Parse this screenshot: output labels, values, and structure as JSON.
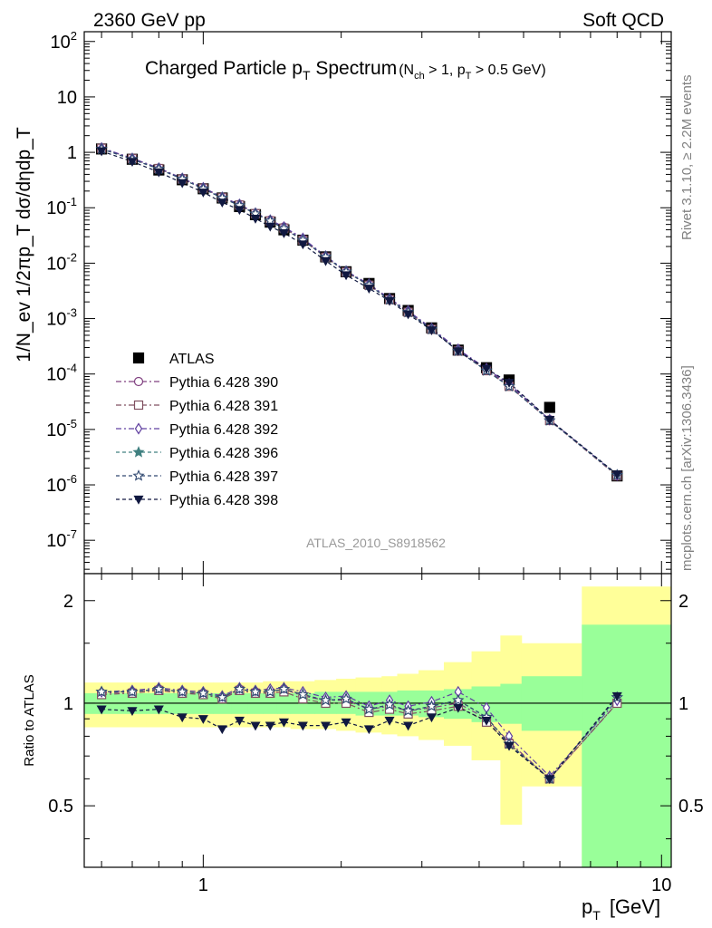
{
  "header": {
    "left": "2360 GeV pp",
    "right": "Soft QCD"
  },
  "side_labels": {
    "rivet": "Rivet 3.1.10, ≥ 2.2M events",
    "mcplots": "mcplots.cern.ch [arXiv:1306.3436]"
  },
  "analysis_tag": "ATLAS_2010_S8918562",
  "main_panel": {
    "title": "Charged Particle p",
    "title_sub": "T",
    "title_rest": " Spectrum",
    "title_cond": "(N",
    "title_cond_sub": "ch",
    "title_cond_mid": " > 1, p",
    "title_cond_sub2": "T",
    "title_cond_end": " > 0.5 GeV)",
    "ylabel": "1/N_ev 1/2πp_T dσ/dηdp_T"
  },
  "ratio_panel": {
    "ylabel": "Ratio to ATLAS",
    "yticks": [
      "0.5",
      "1",
      "2"
    ]
  },
  "xaxis": {
    "label": "p",
    "label_sub": "T",
    "label_unit": "[GeV]",
    "ticks": [
      "1",
      "10"
    ]
  },
  "legend": [
    {
      "label": "ATLAS"
    },
    {
      "label": "Pythia 6.428 390"
    },
    {
      "label": "Pythia 6.428 391"
    },
    {
      "label": "Pythia 6.428 392"
    },
    {
      "label": "Pythia 6.428 396"
    },
    {
      "label": "Pythia 6.428 397"
    },
    {
      "label": "Pythia 6.428 398"
    }
  ],
  "chart_data": [
    {
      "type": "scatter",
      "panel": "spectrum",
      "xscale": "log",
      "yscale": "log",
      "xlim": [
        0.55,
        10.5
      ],
      "ylim": [
        2.5e-08,
        150
      ],
      "yticks": [
        "10^-7",
        "10^-6",
        "10^-5",
        "10^-4",
        "10^-3",
        "10^-2",
        "10^-1",
        "1",
        "10",
        "10^2"
      ],
      "x": [
        0.6,
        0.7,
        0.8,
        0.9,
        1.0,
        1.1,
        1.2,
        1.3,
        1.4,
        1.5,
        1.65,
        1.85,
        2.05,
        2.3,
        2.55,
        2.8,
        3.15,
        3.6,
        4.15,
        4.65,
        5.7,
        8.0
      ],
      "series": [
        {
          "name": "ATLAS",
          "color": "#000000",
          "marker": "square-filled",
          "values": [
            1.15,
            0.75,
            0.48,
            0.32,
            0.22,
            0.15,
            0.105,
            0.075,
            0.055,
            0.04,
            0.026,
            0.013,
            0.007,
            0.0043,
            0.0023,
            0.0014,
            0.00068,
            0.00027,
            0.00013,
            7.8e-05,
            2.5e-05,
            1.45e-06
          ]
        },
        {
          "name": "Pythia 6.428 390",
          "color": "#804080",
          "marker": "circle-open",
          "dash": "6,3,2,3",
          "values": [
            1.2,
            0.78,
            0.52,
            0.34,
            0.23,
            0.155,
            0.115,
            0.08,
            0.06,
            0.045,
            0.027,
            0.013,
            0.007,
            0.0041,
            0.0022,
            0.00135,
            0.00065,
            0.00027,
            0.00012,
            6.4e-05,
            1.5e-05,
            1.5e-06
          ]
        },
        {
          "name": "Pythia 6.428 391",
          "color": "#805060",
          "marker": "square-open",
          "dash": "6,3,2,3",
          "values": [
            1.18,
            0.77,
            0.51,
            0.33,
            0.225,
            0.152,
            0.112,
            0.078,
            0.058,
            0.043,
            0.026,
            0.0128,
            0.0069,
            0.004,
            0.0022,
            0.0013,
            0.00064,
            0.00026,
            0.000115,
            6e-05,
            1.45e-05,
            1.45e-06
          ]
        },
        {
          "name": "Pythia 6.428 392",
          "color": "#6040a0",
          "marker": "diamond-open",
          "dash": "6,3,2,3",
          "values": [
            1.2,
            0.78,
            0.52,
            0.34,
            0.23,
            0.155,
            0.115,
            0.08,
            0.06,
            0.045,
            0.028,
            0.0134,
            0.0072,
            0.0042,
            0.0023,
            0.00138,
            0.00067,
            0.00028,
            0.000125,
            6.6e-05,
            1.5e-05,
            1.5e-06
          ]
        },
        {
          "name": "Pythia 6.428 396",
          "color": "#408080",
          "marker": "star-filled",
          "dash": "4,3",
          "values": [
            1.15,
            0.75,
            0.5,
            0.33,
            0.22,
            0.15,
            0.11,
            0.078,
            0.058,
            0.042,
            0.026,
            0.013,
            0.007,
            0.004,
            0.0022,
            0.0013,
            0.00064,
            0.00026,
            0.000115,
            6e-05,
            1.45e-05,
            1.5e-06
          ]
        },
        {
          "name": "Pythia 6.428 397",
          "color": "#304870",
          "marker": "star-open",
          "dash": "4,3",
          "values": [
            1.15,
            0.75,
            0.5,
            0.33,
            0.22,
            0.15,
            0.11,
            0.078,
            0.058,
            0.042,
            0.026,
            0.013,
            0.007,
            0.004,
            0.0022,
            0.0013,
            0.00064,
            0.00026,
            0.000115,
            6e-05,
            1.45e-05,
            1.5e-06
          ]
        },
        {
          "name": "Pythia 6.428 398",
          "color": "#101840",
          "marker": "triangle-down-filled",
          "dash": "4,3",
          "values": [
            1.05,
            0.68,
            0.44,
            0.28,
            0.19,
            0.125,
            0.092,
            0.064,
            0.046,
            0.035,
            0.022,
            0.011,
            0.0061,
            0.0035,
            0.0021,
            0.0012,
            0.00062,
            0.00026,
            0.000125,
            7e-05,
            1.5e-05,
            1.55e-06
          ]
        }
      ]
    },
    {
      "type": "line",
      "panel": "ratio",
      "xscale": "log",
      "yscale": "log",
      "xlim": [
        0.55,
        10.5
      ],
      "ylim": [
        0.33,
        2.4
      ],
      "bins": [
        [
          0.55,
          0.65
        ],
        [
          0.65,
          0.75
        ],
        [
          0.75,
          0.85
        ],
        [
          0.85,
          0.95
        ],
        [
          0.95,
          1.05
        ],
        [
          1.05,
          1.15
        ],
        [
          1.15,
          1.25
        ],
        [
          1.25,
          1.35
        ],
        [
          1.35,
          1.45
        ],
        [
          1.45,
          1.55
        ],
        [
          1.55,
          1.75
        ],
        [
          1.75,
          1.95
        ],
        [
          1.95,
          2.15
        ],
        [
          2.15,
          2.45
        ],
        [
          2.45,
          2.65
        ],
        [
          2.65,
          2.95
        ],
        [
          2.95,
          3.35
        ],
        [
          3.35,
          3.85
        ],
        [
          3.85,
          4.45
        ],
        [
          4.45,
          4.95
        ],
        [
          4.95,
          6.7
        ],
        [
          6.7,
          10.5
        ]
      ],
      "band_stat": [
        [
          0.93,
          1.07
        ],
        [
          0.93,
          1.07
        ],
        [
          0.93,
          1.07
        ],
        [
          0.93,
          1.07
        ],
        [
          0.93,
          1.07
        ],
        [
          0.93,
          1.07
        ],
        [
          0.93,
          1.07
        ],
        [
          0.93,
          1.07
        ],
        [
          0.93,
          1.07
        ],
        [
          0.93,
          1.07
        ],
        [
          0.93,
          1.07
        ],
        [
          0.93,
          1.08
        ],
        [
          0.93,
          1.08
        ],
        [
          0.92,
          1.08
        ],
        [
          0.92,
          1.08
        ],
        [
          0.92,
          1.09
        ],
        [
          0.91,
          1.09
        ],
        [
          0.9,
          1.1
        ],
        [
          0.88,
          1.12
        ],
        [
          0.87,
          1.14
        ],
        [
          0.83,
          1.2
        ],
        [
          0.33,
          1.7
        ]
      ],
      "band_total": [
        [
          0.85,
          1.15
        ],
        [
          0.85,
          1.15
        ],
        [
          0.85,
          1.15
        ],
        [
          0.85,
          1.15
        ],
        [
          0.85,
          1.15
        ],
        [
          0.85,
          1.15
        ],
        [
          0.85,
          1.15
        ],
        [
          0.85,
          1.15
        ],
        [
          0.85,
          1.16
        ],
        [
          0.85,
          1.16
        ],
        [
          0.84,
          1.16
        ],
        [
          0.84,
          1.17
        ],
        [
          0.83,
          1.18
        ],
        [
          0.82,
          1.19
        ],
        [
          0.81,
          1.2
        ],
        [
          0.8,
          1.22
        ],
        [
          0.78,
          1.25
        ],
        [
          0.75,
          1.32
        ],
        [
          0.68,
          1.42
        ],
        [
          0.44,
          1.58
        ],
        [
          0.57,
          1.5
        ],
        [
          0.33,
          2.2
        ]
      ],
      "reference": 1,
      "x": [
        0.6,
        0.7,
        0.8,
        0.9,
        1.0,
        1.1,
        1.2,
        1.3,
        1.4,
        1.5,
        1.65,
        1.85,
        2.05,
        2.3,
        2.55,
        2.8,
        3.15,
        3.6,
        4.15,
        4.65,
        5.7,
        8.0
      ],
      "series": [
        {
          "name": "Pythia 6.428 390",
          "color": "#804080",
          "marker": "circle-open",
          "values": [
            1.07,
            1.08,
            1.1,
            1.08,
            1.07,
            1.04,
            1.1,
            1.08,
            1.08,
            1.1,
            1.05,
            1.02,
            1.02,
            0.96,
            0.98,
            0.95,
            0.97,
            1.0,
            0.9,
            0.77,
            0.6,
            1.0
          ]
        },
        {
          "name": "Pythia 6.428 391",
          "color": "#805060",
          "marker": "square-open",
          "values": [
            1.06,
            1.07,
            1.09,
            1.07,
            1.06,
            1.03,
            1.09,
            1.07,
            1.07,
            1.08,
            1.03,
            1.0,
            1.0,
            0.94,
            0.96,
            0.93,
            0.95,
            0.98,
            0.88,
            0.76,
            0.6,
            1.0
          ]
        },
        {
          "name": "Pythia 6.428 392",
          "color": "#6040a0",
          "marker": "diamond-open",
          "values": [
            1.08,
            1.09,
            1.11,
            1.09,
            1.08,
            1.05,
            1.11,
            1.09,
            1.1,
            1.11,
            1.08,
            1.04,
            1.05,
            0.98,
            1.02,
            0.98,
            1.01,
            1.08,
            0.97,
            0.8,
            0.61,
            1.02
          ]
        },
        {
          "name": "Pythia 6.428 396",
          "color": "#408080",
          "marker": "star-filled",
          "values": [
            1.08,
            1.08,
            1.1,
            1.08,
            1.07,
            1.04,
            1.1,
            1.08,
            1.08,
            1.1,
            1.06,
            1.02,
            1.03,
            0.96,
            0.99,
            0.95,
            0.98,
            1.02,
            0.91,
            0.76,
            0.6,
            1.04
          ]
        },
        {
          "name": "Pythia 6.428 397",
          "color": "#304870",
          "marker": "star-open",
          "values": [
            1.08,
            1.08,
            1.1,
            1.08,
            1.07,
            1.04,
            1.1,
            1.08,
            1.08,
            1.1,
            1.06,
            1.02,
            1.03,
            0.96,
            0.99,
            0.95,
            0.98,
            1.02,
            0.91,
            0.76,
            0.6,
            1.04
          ]
        },
        {
          "name": "Pythia 6.428 398",
          "color": "#101840",
          "marker": "triangle-down-filled",
          "values": [
            0.96,
            0.95,
            0.96,
            0.91,
            0.9,
            0.84,
            0.89,
            0.86,
            0.86,
            0.88,
            0.86,
            0.86,
            0.88,
            0.84,
            0.89,
            0.86,
            0.91,
            0.97,
            0.89,
            0.75,
            0.6,
            1.05
          ]
        }
      ]
    }
  ]
}
